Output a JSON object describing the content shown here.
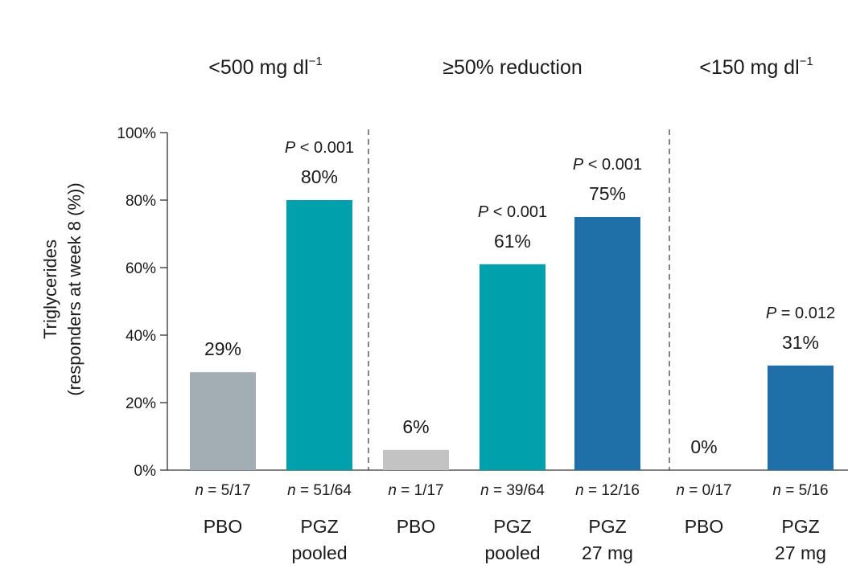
{
  "chart_data": {
    "type": "bar",
    "ylabel_lines": [
      "Triglycerides",
      "(responders at week 8 (%))"
    ],
    "ylim": [
      0,
      100
    ],
    "yticks": [
      "0%",
      "20%",
      "40%",
      "60%",
      "80%",
      "100%"
    ],
    "ytick_values": [
      0,
      20,
      40,
      60,
      80,
      100
    ],
    "colors": {
      "pbo": "#a3adb4",
      "pbo_light": "#c3c3c3",
      "teal": "#00a0ad",
      "blue": "#1f6fa8"
    },
    "groups": [
      {
        "title": "<500 mg dl",
        "title_sup": "−1",
        "bars": [
          {
            "value": 29,
            "value_label": "29%",
            "p_text": "",
            "n_text": "n = 5/17",
            "label_lines": [
              "PBO"
            ],
            "color": "#a3adb4"
          },
          {
            "value": 80,
            "value_label": "80%",
            "p_text": "P < 0.001",
            "n_text": "n = 51/64",
            "label_lines": [
              "PGZ",
              "pooled"
            ],
            "color": "#00a0ad"
          }
        ]
      },
      {
        "title": "≥50% reduction",
        "title_sup": "",
        "bars": [
          {
            "value": 6,
            "value_label": "6%",
            "p_text": "",
            "n_text": "n = 1/17",
            "label_lines": [
              "PBO"
            ],
            "color": "#c3c3c3"
          },
          {
            "value": 61,
            "value_label": "61%",
            "p_text": "P < 0.001",
            "n_text": "n = 39/64",
            "label_lines": [
              "PGZ",
              "pooled"
            ],
            "color": "#00a0ad"
          },
          {
            "value": 75,
            "value_label": "75%",
            "p_text": "P < 0.001",
            "n_text": "n = 12/16",
            "label_lines": [
              "PGZ",
              "27 mg"
            ],
            "color": "#1f6fa8"
          }
        ]
      },
      {
        "title": "<150 mg dl",
        "title_sup": "−1",
        "bars": [
          {
            "value": 0,
            "value_label": "0%",
            "p_text": "",
            "n_text": "n = 0/17",
            "label_lines": [
              "PBO"
            ],
            "color": "#a3adb4"
          },
          {
            "value": 31,
            "value_label": "31%",
            "p_text": "P = 0.012",
            "n_text": "n = 5/16",
            "label_lines": [
              "PGZ",
              "27 mg"
            ],
            "color": "#1f6fa8"
          }
        ]
      }
    ]
  }
}
